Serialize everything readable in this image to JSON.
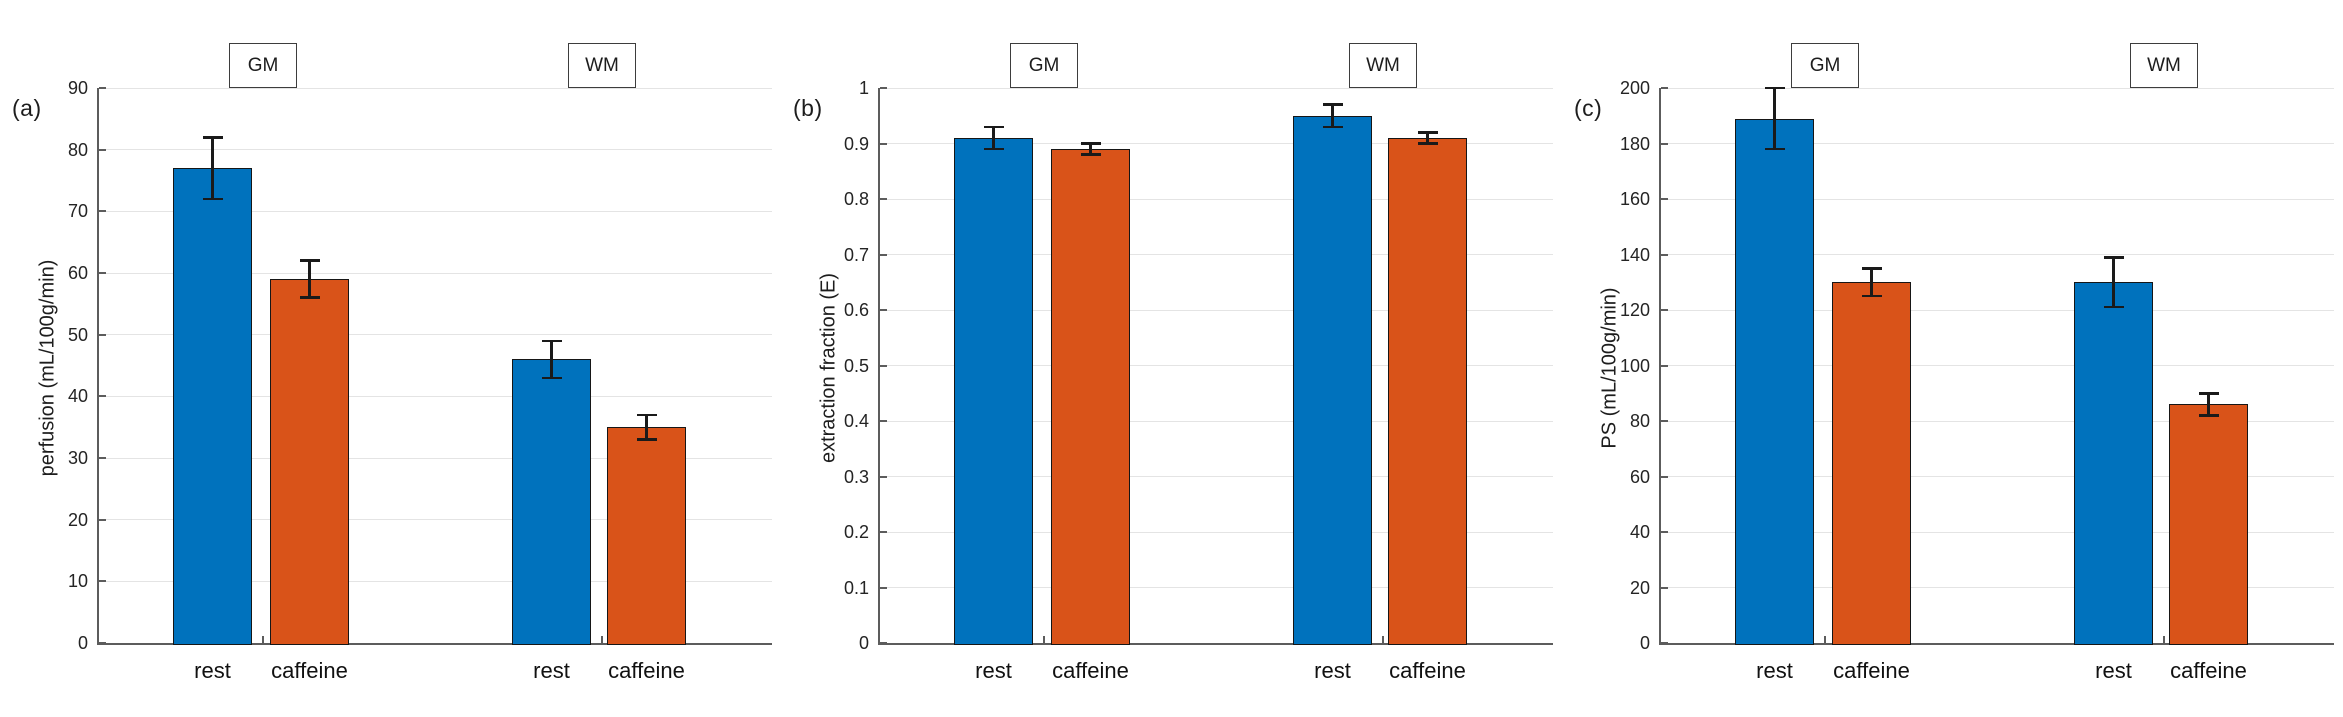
{
  "figure_type": "grouped-bar-chart-figure",
  "styles": {
    "rest_color": "#0072BD",
    "caffeine_color": "#D95319",
    "bar_edge": "#161616",
    "error_bar_color": "#1a1a1a",
    "axis_color": "#5c5c5c",
    "grid_color": "#e4e4e4",
    "text_color": "#1d1d1d",
    "background": "#ffffff"
  },
  "chart_data": [
    {
      "type": "bar",
      "panel_label": "(a)",
      "title": "",
      "categories": [
        "GM",
        "WM"
      ],
      "series": [
        {
          "name": "rest",
          "color": "#0072BD",
          "values": [
            77,
            46
          ],
          "errors": [
            5,
            3
          ]
        },
        {
          "name": "caffeine",
          "color": "#D95319",
          "values": [
            59,
            35
          ],
          "errors": [
            3,
            2
          ]
        }
      ],
      "bar_tick_labels": [
        "rest",
        "caffeine",
        "rest",
        "caffeine"
      ],
      "xlabel": "",
      "ylabel": "perfusion (mL/100g/min)",
      "ylim": [
        0,
        90
      ],
      "ytick_step": 10,
      "grid": true,
      "error_bars": true,
      "legend": "none"
    },
    {
      "type": "bar",
      "panel_label": "(b)",
      "title": "",
      "categories": [
        "GM",
        "WM"
      ],
      "series": [
        {
          "name": "rest",
          "color": "#0072BD",
          "values": [
            0.91,
            0.95
          ],
          "errors": [
            0.02,
            0.02
          ]
        },
        {
          "name": "caffeine",
          "color": "#D95319",
          "values": [
            0.89,
            0.91
          ],
          "errors": [
            0.01,
            0.01
          ]
        }
      ],
      "bar_tick_labels": [
        "rest",
        "caffeine",
        "rest",
        "caffeine"
      ],
      "xlabel": "",
      "ylabel": "extraction fraction (E)",
      "ylim": [
        0,
        1
      ],
      "ytick_step": 0.1,
      "grid": true,
      "error_bars": true,
      "legend": "none"
    },
    {
      "type": "bar",
      "panel_label": "(c)",
      "title": "",
      "categories": [
        "GM",
        "WM"
      ],
      "series": [
        {
          "name": "rest",
          "color": "#0072BD",
          "values": [
            189,
            130
          ],
          "errors": [
            11,
            9
          ]
        },
        {
          "name": "caffeine",
          "color": "#D95319",
          "values": [
            130,
            86
          ],
          "errors": [
            5,
            4
          ]
        }
      ],
      "bar_tick_labels": [
        "rest",
        "caffeine",
        "rest",
        "caffeine"
      ],
      "xlabel": "",
      "ylabel": "PS (mL/100g/min)",
      "ylim": [
        0,
        200
      ],
      "ytick_step": 20,
      "grid": true,
      "error_bars": true,
      "legend": "none"
    }
  ]
}
